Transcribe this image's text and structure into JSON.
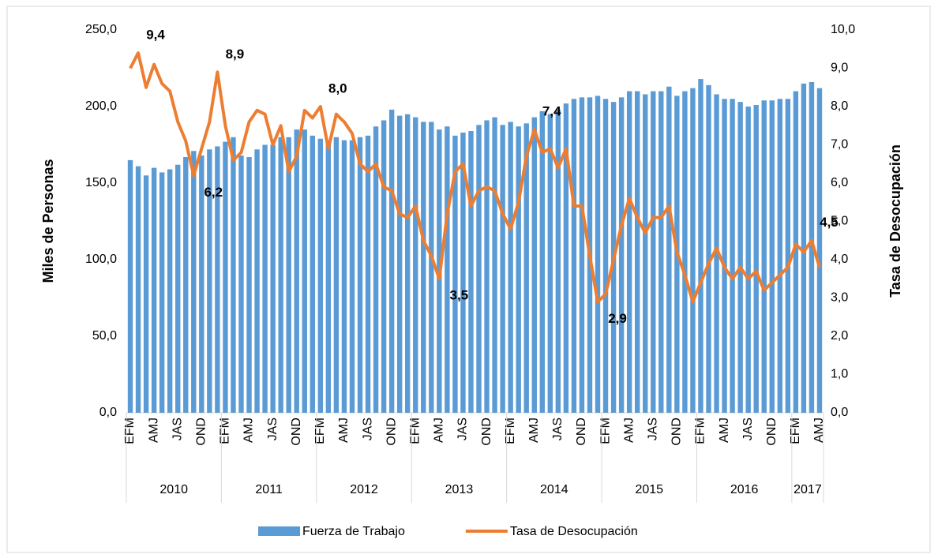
{
  "chart_data": {
    "type": "bar-line",
    "categories": [
      "EFM",
      null,
      null,
      "AMJ",
      null,
      null,
      "JAS",
      null,
      null,
      "OND",
      null,
      null,
      "EFM",
      null,
      null,
      "AMJ",
      null,
      null,
      "JAS",
      null,
      null,
      "OND",
      null,
      null,
      "EFM",
      null,
      null,
      "AMJ",
      null,
      null,
      "JAS",
      null,
      null,
      "OND",
      null,
      null,
      "EFM",
      null,
      null,
      "AMJ",
      null,
      null,
      "JAS",
      null,
      null,
      "OND",
      null,
      null,
      "EFM",
      null,
      null,
      "AMJ",
      null,
      null,
      "JAS",
      null,
      null,
      "OND",
      null,
      null,
      "EFM",
      null,
      null,
      "AMJ",
      null,
      null,
      "JAS",
      null,
      null,
      "OND",
      null,
      null,
      "EFM",
      null,
      null,
      "AMJ",
      null,
      null,
      "JAS",
      null,
      null,
      "OND",
      null,
      null,
      "EFM",
      null,
      null,
      "AMJ"
    ],
    "years": [
      "2010",
      "2011",
      "2012",
      "2013",
      "2014",
      "2015",
      "2016",
      "2017"
    ],
    "y_label": "Miles de Personas",
    "y2_label": "Tasa de Desocupación",
    "ylim": [
      0,
      250
    ],
    "yticks": [
      {
        "value": 0,
        "label": "0,0"
      },
      {
        "value": 50,
        "label": "50,0"
      },
      {
        "value": 100,
        "label": "100,0"
      },
      {
        "value": 150,
        "label": "150,0"
      },
      {
        "value": 200,
        "label": "200,0"
      },
      {
        "value": 250,
        "label": "250,0"
      }
    ],
    "y2lim": [
      0,
      10
    ],
    "y2ticks": [
      {
        "value": 0,
        "label": "0,0"
      },
      {
        "value": 1,
        "label": "1,0"
      },
      {
        "value": 2,
        "label": "2,0"
      },
      {
        "value": 3,
        "label": "3,0"
      },
      {
        "value": 4,
        "label": "4,0"
      },
      {
        "value": 5,
        "label": "5,0"
      },
      {
        "value": 6,
        "label": "6,0"
      },
      {
        "value": 7,
        "label": "7,0"
      },
      {
        "value": 8,
        "label": "8,0"
      },
      {
        "value": 9,
        "label": "9,0"
      },
      {
        "value": 10,
        "label": "10,0"
      }
    ],
    "series": [
      {
        "name": "Fuerza de Trabajo",
        "type": "bar",
        "color": "#5b9bd5",
        "values": [
          165,
          161,
          155,
          160,
          157,
          159,
          162,
          167,
          171,
          168,
          172,
          174,
          177,
          180,
          168,
          167,
          172,
          175,
          175,
          180,
          180,
          185,
          185,
          181,
          179,
          177,
          180,
          178,
          178,
          180,
          181,
          187,
          191,
          198,
          194,
          195,
          193,
          190,
          190,
          185,
          187,
          181,
          183,
          184,
          188,
          191,
          193,
          188,
          190,
          187,
          189,
          193,
          197,
          195,
          198,
          202,
          205,
          206,
          206,
          207,
          205,
          203,
          206,
          210,
          210,
          208,
          210,
          210,
          213,
          207,
          210,
          212,
          218,
          214,
          208,
          205,
          205,
          203,
          200,
          201,
          204,
          204,
          205,
          205,
          210,
          215,
          216,
          212
        ]
      },
      {
        "name": "Tasa de Desocupación",
        "type": "line",
        "axis": "y2",
        "color": "#ed7d31",
        "values": [
          9.0,
          9.4,
          8.5,
          9.1,
          8.6,
          8.4,
          7.6,
          7.1,
          6.2,
          6.9,
          7.6,
          8.9,
          7.5,
          6.6,
          6.8,
          7.6,
          7.9,
          7.8,
          7.0,
          7.5,
          6.3,
          6.7,
          7.9,
          7.7,
          8.0,
          6.9,
          7.8,
          7.6,
          7.3,
          6.5,
          6.3,
          6.5,
          5.9,
          5.8,
          5.2,
          5.1,
          5.4,
          4.5,
          4.1,
          3.5,
          5.2,
          6.3,
          6.5,
          5.4,
          5.8,
          5.9,
          5.8,
          5.2,
          4.8,
          5.5,
          6.7,
          7.4,
          6.8,
          6.9,
          6.4,
          6.9,
          5.4,
          5.4,
          4.1,
          2.9,
          3.1,
          4.0,
          4.9,
          5.6,
          5.1,
          4.7,
          5.1,
          5.1,
          5.4,
          4.2,
          3.6,
          2.9,
          3.4,
          3.9,
          4.3,
          3.8,
          3.5,
          3.8,
          3.5,
          3.7,
          3.2,
          3.4,
          3.6,
          3.8,
          4.4,
          4.2,
          4.5,
          3.8
        ],
        "value_labels": [
          null,
          "9,4",
          null,
          null,
          null,
          null,
          null,
          null,
          "6,2",
          null,
          null,
          "8,9",
          null,
          null,
          null,
          null,
          null,
          null,
          null,
          null,
          null,
          null,
          null,
          null,
          "8,0",
          null,
          null,
          null,
          null,
          null,
          null,
          null,
          null,
          null,
          null,
          null,
          null,
          null,
          null,
          "3,5",
          null,
          null,
          null,
          null,
          null,
          null,
          null,
          null,
          null,
          null,
          null,
          "7,4",
          null,
          null,
          null,
          null,
          null,
          null,
          null,
          "2,9",
          null,
          null,
          null,
          null,
          null,
          null,
          null,
          null,
          null,
          null,
          null,
          null,
          null,
          null,
          null,
          null,
          null,
          null,
          null,
          null,
          null,
          null,
          null,
          null,
          null,
          null,
          "4,5",
          null
        ]
      }
    ]
  }
}
